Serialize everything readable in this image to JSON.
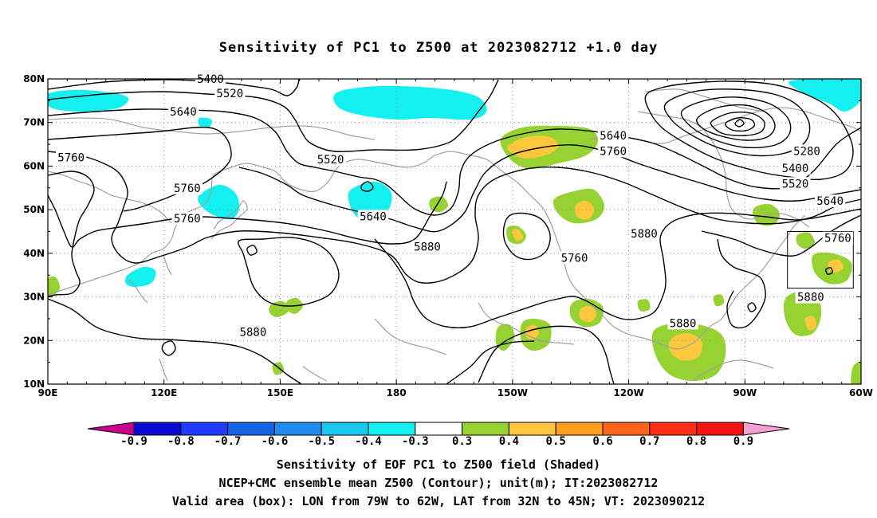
{
  "title": "Sensitivity of PC1 to Z500 at 2023082712 +1.0 day",
  "lat_ticks": [
    "80N",
    "70N",
    "60N",
    "50N",
    "40N",
    "30N",
    "20N",
    "10N"
  ],
  "lon_ticks": [
    "90E",
    "120E",
    "150E",
    "180",
    "150W",
    "120W",
    "90W",
    "60W"
  ],
  "contour_labels": [
    {
      "text": "5400",
      "lon": 132,
      "lat": 80
    },
    {
      "text": "5520",
      "lon": 137,
      "lat": 76.7
    },
    {
      "text": "5640",
      "lon": 125,
      "lat": 72.5
    },
    {
      "text": "5760",
      "lon": 96,
      "lat": 62
    },
    {
      "text": "5760",
      "lon": 126,
      "lat": 55
    },
    {
      "text": "5760",
      "lon": 126,
      "lat": 48
    },
    {
      "text": "5520",
      "lon": -197,
      "lat": 61.5
    },
    {
      "text": "5640",
      "lon": -186,
      "lat": 48.5
    },
    {
      "text": "5880",
      "lon": -172,
      "lat": 41.5
    },
    {
      "text": "5880",
      "lon": 143,
      "lat": 22
    },
    {
      "text": "5640",
      "lon": -124,
      "lat": 67
    },
    {
      "text": "5760",
      "lon": -124,
      "lat": 63.5
    },
    {
      "text": "5760",
      "lon": -134,
      "lat": 39
    },
    {
      "text": "5880",
      "lon": -116,
      "lat": 44.5
    },
    {
      "text": "5880",
      "lon": -106,
      "lat": 24
    },
    {
      "text": "5280",
      "lon": -74,
      "lat": 63.5
    },
    {
      "text": "5400",
      "lon": -77,
      "lat": 59.5
    },
    {
      "text": "5520",
      "lon": -77,
      "lat": 56
    },
    {
      "text": "5640",
      "lon": -68,
      "lat": 52
    },
    {
      "text": "5760",
      "lon": -66,
      "lat": 43.5
    },
    {
      "text": "5880",
      "lon": -73,
      "lat": 30
    }
  ],
  "valid_box": {
    "lon_w": -79,
    "lon_e": -62,
    "lat_s": 32,
    "lat_n": 45
  },
  "colorbar": {
    "labels": [
      "-0.9",
      "-0.8",
      "-0.7",
      "-0.6",
      "-0.5",
      "-0.4",
      "-0.3",
      "0.3",
      "0.4",
      "0.5",
      "0.6",
      "0.7",
      "0.8",
      "0.9"
    ],
    "colors": [
      "#c8008c",
      "#0a0ad2",
      "#1e3cff",
      "#1464e6",
      "#1e8cf0",
      "#18c8f0",
      "#14f0f0",
      "#ffffff",
      "#96d232",
      "#ffc83c",
      "#ffa01e",
      "#ff6419",
      "#ff2d14",
      "#f01414",
      "#f5a0d2"
    ]
  },
  "captions": [
    "Sensitivity of EOF PC1 to Z500 field (Shaded)",
    "NCEP+CMC ensemble mean Z500 (Contour); unit(m); IT:2023082712",
    "Valid area (box): LON from 79W to 62W, LAT from 32N to 45N; VT: 2023090212"
  ],
  "colors": {
    "contour": "#000000",
    "coastline": "#a0a0a0",
    "grid": "#8c8c8c",
    "box": "#000000"
  }
}
